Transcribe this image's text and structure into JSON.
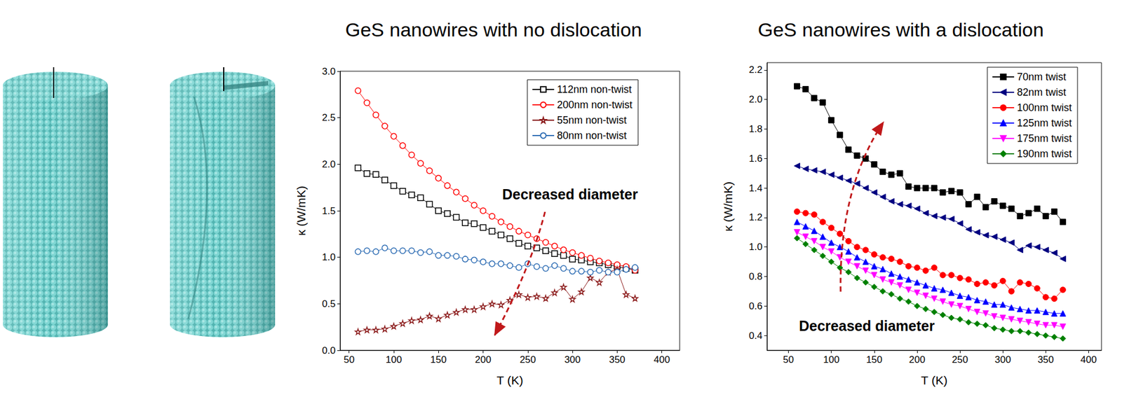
{
  "chart_data": [
    {
      "type": "line",
      "title": "GeS nanowires with no dislocation",
      "x_label": "T (K)",
      "y_label": "κ (W/mK)",
      "annotation": "Decreased diameter",
      "x": [
        60,
        70,
        80,
        90,
        100,
        110,
        120,
        130,
        140,
        150,
        160,
        170,
        180,
        190,
        200,
        210,
        220,
        230,
        240,
        250,
        260,
        270,
        280,
        290,
        300,
        310,
        320,
        330,
        340,
        350,
        360,
        370
      ],
      "series": [
        {
          "name": "112nm non-twist",
          "color": "#000000",
          "marker": "square_open",
          "values": [
            1.96,
            1.9,
            1.89,
            1.83,
            1.77,
            1.71,
            1.67,
            1.64,
            1.57,
            1.5,
            1.47,
            1.43,
            1.37,
            1.36,
            1.32,
            1.28,
            1.24,
            1.2,
            1.15,
            1.12,
            1.1,
            1.07,
            1.04,
            1.02,
            0.98,
            0.97,
            0.95,
            0.94,
            0.92,
            0.9,
            0.88,
            0.86
          ]
        },
        {
          "name": "200nm non-twist",
          "color": "#FF0000",
          "marker": "circle_open",
          "values": [
            2.79,
            2.66,
            2.53,
            2.41,
            2.3,
            2.2,
            2.1,
            2.01,
            1.93,
            1.85,
            1.77,
            1.7,
            1.63,
            1.56,
            1.5,
            1.44,
            1.38,
            1.33,
            1.28,
            1.24,
            1.2,
            1.16,
            1.12,
            1.08,
            1.05,
            1.02,
            0.99,
            0.96,
            0.94,
            0.92,
            0.9,
            0.86
          ]
        },
        {
          "name": "55nm non-twist",
          "color": "#8B1A1A",
          "marker": "star_open",
          "values": [
            0.2,
            0.22,
            0.22,
            0.23,
            0.26,
            0.29,
            0.32,
            0.33,
            0.37,
            0.34,
            0.38,
            0.41,
            0.44,
            0.44,
            0.47,
            0.5,
            0.49,
            0.54,
            0.6,
            0.57,
            0.58,
            0.56,
            0.62,
            0.68,
            0.55,
            0.63,
            0.78,
            0.73,
            0.84,
            0.87,
            0.6,
            0.56
          ]
        },
        {
          "name": "80nm non-twist",
          "color": "#2E6DB4",
          "marker": "circle_open",
          "values": [
            1.06,
            1.07,
            1.06,
            1.1,
            1.07,
            1.07,
            1.07,
            1.05,
            1.06,
            1.02,
            1.02,
            1.01,
            0.98,
            0.97,
            0.95,
            0.93,
            0.93,
            0.91,
            0.89,
            0.93,
            0.9,
            0.88,
            0.91,
            0.88,
            0.85,
            0.85,
            0.84,
            0.86,
            0.84,
            0.84,
            0.87,
            0.89
          ]
        }
      ],
      "xlim": [
        40,
        420
      ],
      "xticks": [
        50,
        100,
        150,
        200,
        250,
        300,
        350,
        400
      ],
      "ylim": [
        0,
        3
      ],
      "yticks": [
        {
          "value": 0,
          "label": "0.0"
        },
        {
          "value": 0.5,
          "label": "0.5"
        },
        {
          "value": 1,
          "label": "1.0"
        },
        {
          "value": 1.5,
          "label": "1.5"
        },
        {
          "value": 2,
          "label": "2.0"
        },
        {
          "value": 2.5,
          "label": "2.5"
        },
        {
          "value": 3,
          "label": "3.0"
        }
      ],
      "grid": false,
      "legend": "upper right"
    },
    {
      "type": "line",
      "title": "GeS nanowires with a dislocation",
      "x_label": "T (K)",
      "y_label": "κ (W/mK)",
      "annotation": "Decreased diameter",
      "x": [
        60,
        70,
        80,
        90,
        100,
        110,
        120,
        130,
        140,
        150,
        160,
        170,
        180,
        190,
        200,
        210,
        220,
        230,
        240,
        250,
        260,
        270,
        280,
        290,
        300,
        310,
        320,
        330,
        340,
        350,
        360,
        370
      ],
      "series": [
        {
          "name": "70nm twist",
          "color": "#000000",
          "marker": "square",
          "values": [
            2.09,
            2.07,
            2.01,
            1.98,
            1.86,
            1.76,
            1.66,
            1.62,
            1.6,
            1.56,
            1.51,
            1.49,
            1.5,
            1.41,
            1.4,
            1.4,
            1.4,
            1.37,
            1.38,
            1.37,
            1.29,
            1.34,
            1.27,
            1.31,
            1.28,
            1.26,
            1.21,
            1.23,
            1.26,
            1.21,
            1.24,
            1.17
          ]
        },
        {
          "name": "82nm twist",
          "color": "#000080",
          "marker": "triangle_left",
          "values": [
            1.55,
            1.53,
            1.52,
            1.51,
            1.49,
            1.47,
            1.45,
            1.43,
            1.4,
            1.37,
            1.34,
            1.31,
            1.29,
            1.28,
            1.26,
            1.23,
            1.21,
            1.2,
            1.19,
            1.16,
            1.12,
            1.1,
            1.08,
            1.07,
            1.05,
            1.03,
            0.98,
            1.01,
            1.0,
            0.98,
            0.96,
            0.92
          ]
        },
        {
          "name": "100nm twist",
          "color": "#FF0000",
          "marker": "circle",
          "values": [
            1.24,
            1.23,
            1.22,
            1.17,
            1.13,
            1.09,
            1.04,
            1.0,
            0.98,
            0.95,
            0.93,
            0.92,
            0.9,
            0.87,
            0.86,
            0.84,
            0.86,
            0.81,
            0.81,
            0.79,
            0.78,
            0.75,
            0.76,
            0.74,
            0.77,
            0.7,
            0.76,
            0.75,
            0.72,
            0.66,
            0.65,
            0.71
          ]
        },
        {
          "name": "125nm twist",
          "color": "#0000FF",
          "marker": "triangle",
          "values": [
            1.17,
            1.14,
            1.11,
            1.07,
            1.03,
            1.0,
            0.97,
            0.93,
            0.9,
            0.87,
            0.85,
            0.82,
            0.8,
            0.78,
            0.76,
            0.74,
            0.72,
            0.71,
            0.69,
            0.67,
            0.66,
            0.64,
            0.63,
            0.61,
            0.61,
            0.59,
            0.58,
            0.57,
            0.57,
            0.56,
            0.55,
            0.55
          ]
        },
        {
          "name": "175nm twist",
          "color": "#FF00FF",
          "marker": "triangle_down",
          "values": [
            1.1,
            1.07,
            1.04,
            1.0,
            0.97,
            0.93,
            0.9,
            0.87,
            0.84,
            0.81,
            0.78,
            0.76,
            0.74,
            0.71,
            0.69,
            0.67,
            0.65,
            0.63,
            0.61,
            0.6,
            0.58,
            0.56,
            0.55,
            0.53,
            0.52,
            0.51,
            0.5,
            0.49,
            0.48,
            0.47,
            0.47,
            0.46
          ]
        },
        {
          "name": "190nm twist",
          "color": "#008000",
          "marker": "diamond",
          "values": [
            1.06,
            1.02,
            0.98,
            0.94,
            0.9,
            0.86,
            0.83,
            0.79,
            0.76,
            0.73,
            0.7,
            0.68,
            0.65,
            0.63,
            0.6,
            0.58,
            0.56,
            0.54,
            0.52,
            0.51,
            0.49,
            0.48,
            0.47,
            0.45,
            0.44,
            0.43,
            0.43,
            0.42,
            0.41,
            0.4,
            0.39,
            0.38
          ]
        }
      ],
      "xlim": [
        25,
        415
      ],
      "xticks": [
        50,
        100,
        150,
        200,
        250,
        300,
        350,
        400
      ],
      "ylim": [
        0.3,
        2.25
      ],
      "yticks": [
        {
          "value": 0.4,
          "label": "0.4"
        },
        {
          "value": 0.6,
          "label": "0.6"
        },
        {
          "value": 0.8,
          "label": "0.8"
        },
        {
          "value": 1,
          "label": "1.0"
        },
        {
          "value": 1.2,
          "label": "1.2"
        },
        {
          "value": 1.4,
          "label": "1.4"
        },
        {
          "value": 1.6,
          "label": "1.6"
        },
        {
          "value": 1.8,
          "label": "1.8"
        },
        {
          "value": 2,
          "label": "2.0"
        },
        {
          "value": 2.2,
          "label": "2.2"
        }
      ],
      "grid": false,
      "legend": "upper right"
    }
  ]
}
